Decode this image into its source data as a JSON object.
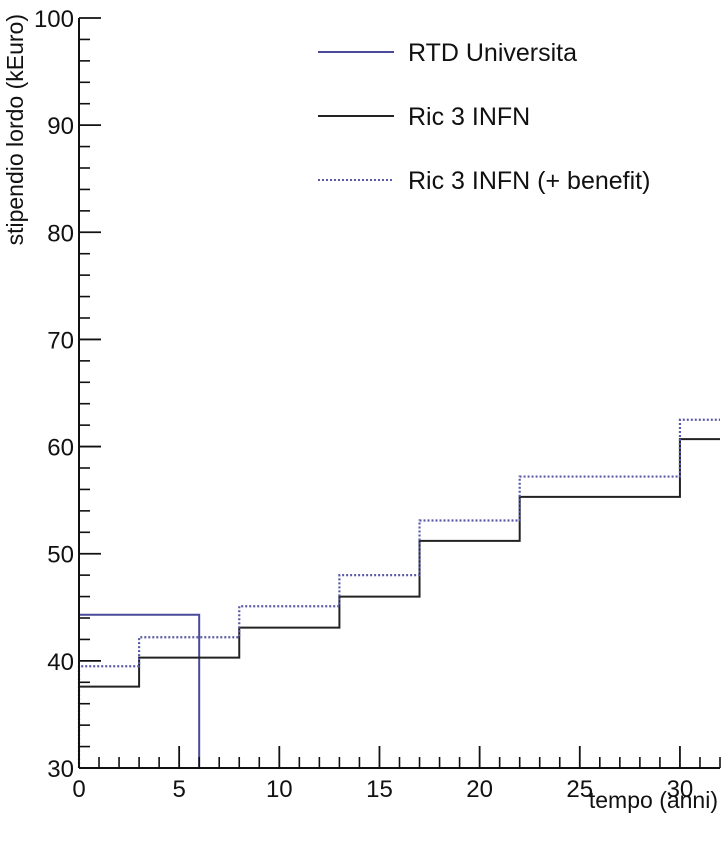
{
  "chart_data": {
    "type": "line",
    "step": true,
    "xlabel": "tempo (anni)",
    "ylabel": "stipendio lordo (kEuro)",
    "xlim": [
      0,
      32
    ],
    "ylim": [
      30,
      100
    ],
    "xticks": [
      0,
      5,
      10,
      15,
      20,
      25,
      30
    ],
    "yticks": [
      30,
      40,
      50,
      60,
      70,
      80,
      90,
      100
    ],
    "x_minor_step": 1,
    "y_minor_step": 2,
    "grid": false,
    "legend_position": "top-right",
    "series": [
      {
        "name": "RTD Universita",
        "color": "#4a4a9a",
        "style": "solid",
        "steps": [
          {
            "x0": 0,
            "x1": 6,
            "y": 44.3
          }
        ]
      },
      {
        "name": "Ric 3 INFN",
        "color": "#222222",
        "style": "solid",
        "steps": [
          {
            "x0": 0,
            "x1": 3,
            "y": 37.6
          },
          {
            "x0": 3,
            "x1": 8,
            "y": 40.3
          },
          {
            "x0": 8,
            "x1": 13,
            "y": 43.1
          },
          {
            "x0": 13,
            "x1": 17,
            "y": 46.0
          },
          {
            "x0": 17,
            "x1": 22,
            "y": 51.2
          },
          {
            "x0": 22,
            "x1": 30,
            "y": 55.3
          },
          {
            "x0": 30,
            "x1": 32,
            "y": 60.7
          }
        ]
      },
      {
        "name": "Ric 3 INFN (+ benefit)",
        "color": "#5a5aa8",
        "style": "dotted",
        "steps": [
          {
            "x0": 0,
            "x1": 3,
            "y": 39.5
          },
          {
            "x0": 3,
            "x1": 8,
            "y": 42.2
          },
          {
            "x0": 8,
            "x1": 13,
            "y": 45.1
          },
          {
            "x0": 13,
            "x1": 17,
            "y": 48.0
          },
          {
            "x0": 17,
            "x1": 22,
            "y": 53.1
          },
          {
            "x0": 22,
            "x1": 30,
            "y": 57.2
          },
          {
            "x0": 30,
            "x1": 32,
            "y": 62.5
          }
        ]
      }
    ]
  }
}
